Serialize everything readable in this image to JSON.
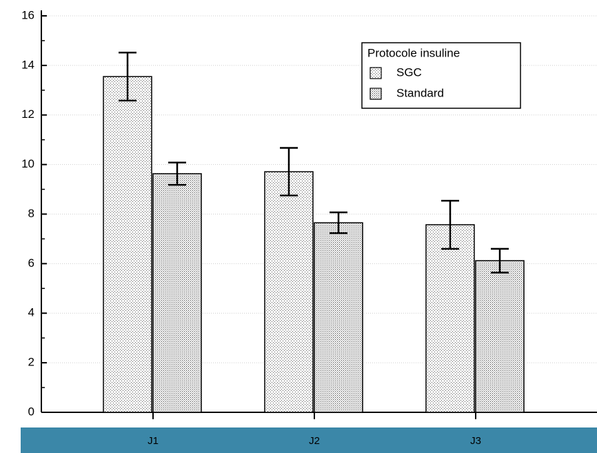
{
  "chart_data": {
    "type": "bar",
    "categories": [
      "J1",
      "J2",
      "J3"
    ],
    "series": [
      {
        "name": "SGC",
        "values": [
          13.55,
          9.71,
          7.57
        ],
        "errors": [
          0.97,
          0.96,
          0.97
        ]
      },
      {
        "name": "Standard",
        "values": [
          9.63,
          7.65,
          6.12
        ],
        "errors": [
          0.45,
          0.42,
          0.48
        ]
      }
    ],
    "legend_title": "Protocole insuline",
    "ylim": [
      0,
      16
    ],
    "yticks": [
      0,
      2,
      4,
      6,
      8,
      10,
      12,
      14,
      16
    ],
    "grid": true
  }
}
